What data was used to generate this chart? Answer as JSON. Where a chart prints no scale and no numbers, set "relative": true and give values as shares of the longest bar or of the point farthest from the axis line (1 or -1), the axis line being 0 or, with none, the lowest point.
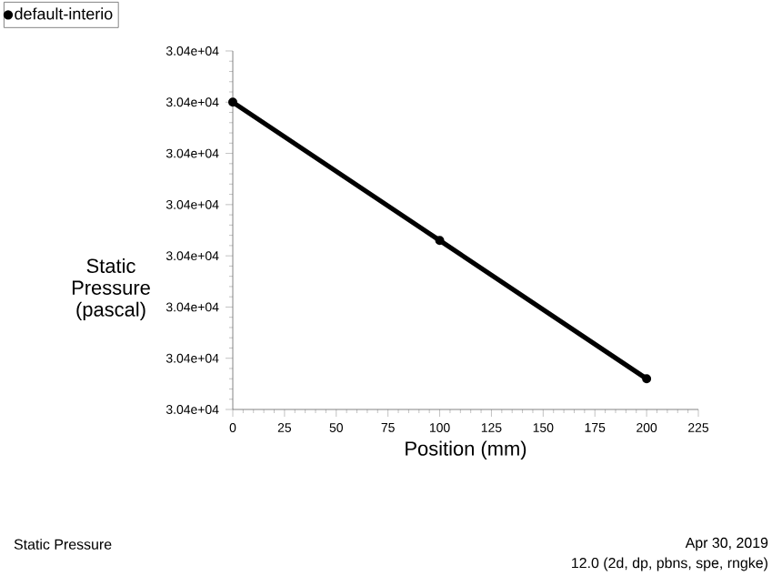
{
  "chart_data": {
    "type": "line",
    "title": "Static Pressure",
    "xlabel": "Position (mm)",
    "ylabel": "Static Pressure (pascal)",
    "annotations": [
      "3.04e+04",
      "3.04e+04",
      "3.04e+04",
      "3.04e+04",
      "3.04e+04",
      "3.04e+04",
      "3.04e+04",
      "3.04e+04",
      "Apr 30, 2019",
      "12.0 (2d, dp, pbns, spe, rngke)"
    ],
    "relative": true,
    "x": [
      0,
      100,
      200
    ],
    "xlim": [
      0,
      225
    ],
    "xticks": [
      0,
      25,
      50,
      75,
      100,
      125,
      150,
      175,
      200,
      225
    ],
    "series": [
      {
        "name": "default-interio",
        "color": "#000000",
        "values": [
          1,
          0.55,
          0.1
        ]
      }
    ],
    "marker": "circle",
    "legend": "top left",
    "grid": false
  }
}
